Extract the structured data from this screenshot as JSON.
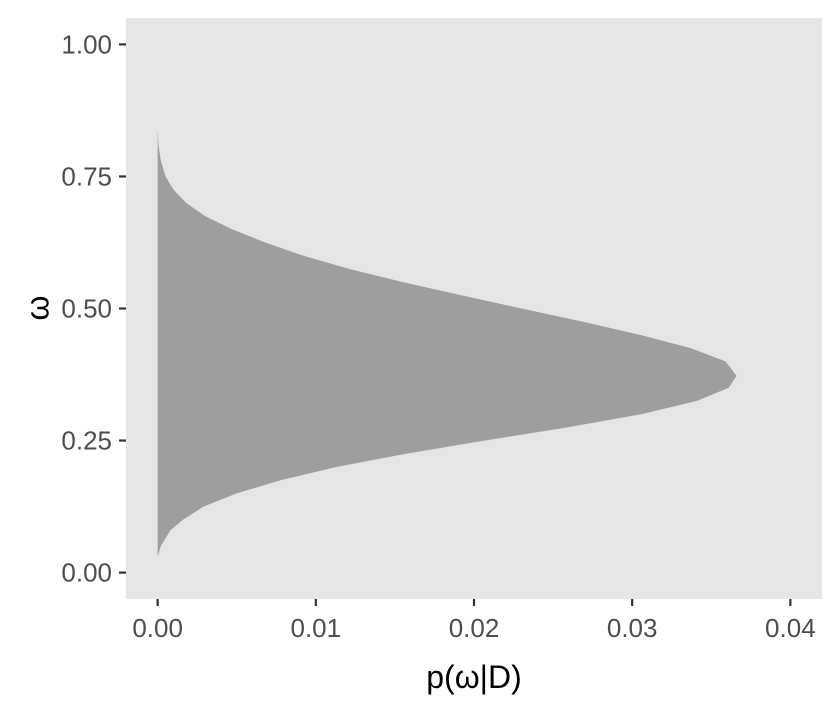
{
  "chart_data": {
    "type": "area",
    "title": "",
    "xlabel": "p(ω|D)",
    "ylabel": "ω",
    "xlim": [
      -0.002,
      0.042
    ],
    "ylim": [
      -0.05,
      1.05
    ],
    "x_ticks": [
      {
        "value": 0.0,
        "label": "0.00"
      },
      {
        "value": 0.01,
        "label": "0.01"
      },
      {
        "value": 0.02,
        "label": "0.02"
      },
      {
        "value": 0.03,
        "label": "0.03"
      },
      {
        "value": 0.04,
        "label": "0.04"
      }
    ],
    "y_ticks": [
      {
        "value": 0.0,
        "label": "0.00"
      },
      {
        "value": 0.25,
        "label": "0.25"
      },
      {
        "value": 0.5,
        "label": "0.50"
      },
      {
        "value": 0.75,
        "label": "0.75"
      },
      {
        "value": 1.0,
        "label": "1.00"
      }
    ],
    "grid": false,
    "legend": "none",
    "colors": {
      "panel": "#e5e5e5",
      "fill": "#9e9e9e",
      "tick": "#333333"
    },
    "series": [
      {
        "points": [
          {
            "omega": 0.03,
            "density": 0.0
          },
          {
            "omega": 0.05,
            "density": 0.0002
          },
          {
            "omega": 0.08,
            "density": 0.0008
          },
          {
            "omega": 0.1,
            "density": 0.0016
          },
          {
            "omega": 0.125,
            "density": 0.0029
          },
          {
            "omega": 0.15,
            "density": 0.005
          },
          {
            "omega": 0.175,
            "density": 0.0078
          },
          {
            "omega": 0.2,
            "density": 0.0113
          },
          {
            "omega": 0.225,
            "density": 0.0157
          },
          {
            "omega": 0.25,
            "density": 0.0207
          },
          {
            "omega": 0.275,
            "density": 0.0259
          },
          {
            "omega": 0.3,
            "density": 0.0306
          },
          {
            "omega": 0.325,
            "density": 0.0341
          },
          {
            "omega": 0.35,
            "density": 0.0361
          },
          {
            "omega": 0.3725,
            "density": 0.0366
          },
          {
            "omega": 0.4,
            "density": 0.0359
          },
          {
            "omega": 0.425,
            "density": 0.0337
          },
          {
            "omega": 0.45,
            "density": 0.0305
          },
          {
            "omega": 0.475,
            "density": 0.0269
          },
          {
            "omega": 0.5,
            "density": 0.023
          },
          {
            "omega": 0.525,
            "density": 0.0192
          },
          {
            "omega": 0.55,
            "density": 0.0155
          },
          {
            "omega": 0.575,
            "density": 0.0121
          },
          {
            "omega": 0.6,
            "density": 0.0092
          },
          {
            "omega": 0.625,
            "density": 0.0068
          },
          {
            "omega": 0.65,
            "density": 0.0047
          },
          {
            "omega": 0.675,
            "density": 0.003
          },
          {
            "omega": 0.7,
            "density": 0.0018
          },
          {
            "omega": 0.725,
            "density": 0.001
          },
          {
            "omega": 0.75,
            "density": 0.0005
          },
          {
            "omega": 0.78,
            "density": 0.0002
          },
          {
            "omega": 0.81,
            "density": 5e-05
          },
          {
            "omega": 0.84,
            "density": 0.0
          }
        ]
      }
    ]
  }
}
